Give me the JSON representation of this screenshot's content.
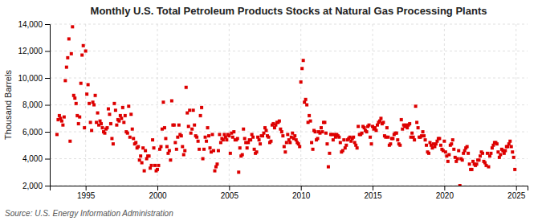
{
  "chart_data": {
    "type": "scatter",
    "title": "Monthly U.S. Total Petroleum Products Stocks at Natural Gas Processing Plants",
    "y_label": "Thousand Barrels",
    "annotations": [
      "Source: U.S. Energy Information Administration"
    ],
    "color": "#dd0000",
    "marker": "square",
    "grid": true,
    "xlim": [
      1992.5,
      2025.8
    ],
    "xticks": [
      1995,
      2000,
      2005,
      2010,
      2015,
      2020,
      2025
    ],
    "ylim": [
      2000,
      14000
    ],
    "yticks": [
      {
        "value": 2000,
        "label": "2,000"
      },
      {
        "value": 4000,
        "label": "4,000"
      },
      {
        "value": 6000,
        "label": "6,000"
      },
      {
        "value": 8000,
        "label": "8,000"
      },
      {
        "value": 10000,
        "label": "10,000"
      },
      {
        "value": 12000,
        "label": "12,000"
      },
      {
        "value": 14000,
        "label": "14,000"
      }
    ],
    "x": [
      1993,
      1993.0833333333333,
      1993.1666666666667,
      1993.25,
      1993.3333333333333,
      1993.4166666666667,
      1993.5,
      1993.5833333333333,
      1993.6666666666667,
      1993.75,
      1993.8333333333333,
      1993.9166666666667,
      1994,
      1994.0833333333333,
      1994.1666666666667,
      1994.25,
      1994.3333333333333,
      1994.4166666666667,
      1994.5,
      1994.5833333333333,
      1994.6666666666667,
      1994.75,
      1994.8333333333333,
      1994.9166666666667,
      1995,
      1995.0833333333333,
      1995.1666666666667,
      1995.25,
      1995.3333333333333,
      1995.4166666666667,
      1995.5,
      1995.5833333333333,
      1995.6666666666667,
      1995.75,
      1995.8333333333333,
      1995.9166666666667,
      1996,
      1996.0833333333333,
      1996.1666666666667,
      1996.25,
      1996.3333333333333,
      1996.4166666666667,
      1996.5,
      1996.5833333333333,
      1996.6666666666667,
      1996.75,
      1996.8333333333333,
      1996.9166666666667,
      1997,
      1997.0833333333333,
      1997.1666666666667,
      1997.25,
      1997.3333333333333,
      1997.4166666666667,
      1997.5,
      1997.5833333333333,
      1997.6666666666667,
      1997.75,
      1997.8333333333333,
      1997.9166666666667,
      1998,
      1998.0833333333333,
      1998.1666666666667,
      1998.25,
      1998.3333333333333,
      1998.4166666666667,
      1998.5,
      1998.5833333333333,
      1998.6666666666667,
      1998.75,
      1998.8333333333333,
      1998.9166666666667,
      1999,
      1999.0833333333333,
      1999.1666666666667,
      1999.25,
      1999.3333333333333,
      1999.4166666666667,
      1999.5,
      1999.5833333333333,
      1999.6666666666667,
      1999.75,
      1999.8333333333333,
      1999.9166666666667,
      2000,
      2000.0833333333333,
      2000.1666666666667,
      2000.25,
      2000.3333333333333,
      2000.4166666666667,
      2000.5,
      2000.5833333333333,
      2000.6666666666667,
      2000.75,
      2000.8333333333333,
      2000.9166666666667,
      2001,
      2001.0833333333333,
      2001.1666666666667,
      2001.25,
      2001.3333333333333,
      2001.4166666666667,
      2001.5,
      2001.5833333333333,
      2001.6666666666667,
      2001.75,
      2001.8333333333333,
      2001.9166666666667,
      2002,
      2002.0833333333333,
      2002.1666666666667,
      2002.25,
      2002.3333333333333,
      2002.4166666666667,
      2002.5,
      2002.5833333333333,
      2002.6666666666667,
      2002.75,
      2002.8333333333333,
      2002.9166666666667,
      2003,
      2003.0833333333333,
      2003.1666666666667,
      2003.25,
      2003.3333333333333,
      2003.4166666666667,
      2003.5,
      2003.5833333333333,
      2003.6666666666667,
      2003.75,
      2003.8333333333333,
      2003.9166666666667,
      2004,
      2004.0833333333333,
      2004.1666666666667,
      2004.25,
      2004.3333333333333,
      2004.4166666666667,
      2004.5,
      2004.5833333333333,
      2004.6666666666667,
      2004.75,
      2004.8333333333333,
      2004.9166666666667,
      2005,
      2005.0833333333333,
      2005.1666666666667,
      2005.25,
      2005.3333333333333,
      2005.4166666666667,
      2005.5,
      2005.5833333333333,
      2005.6666666666667,
      2005.75,
      2005.8333333333333,
      2005.9166666666667,
      2006,
      2006.0833333333333,
      2006.1666666666667,
      2006.25,
      2006.3333333333333,
      2006.4166666666667,
      2006.5,
      2006.5833333333333,
      2006.6666666666667,
      2006.75,
      2006.8333333333333,
      2006.9166666666667,
      2007,
      2007.0833333333333,
      2007.1666666666667,
      2007.25,
      2007.3333333333333,
      2007.4166666666667,
      2007.5,
      2007.5833333333333,
      2007.6666666666667,
      2007.75,
      2007.8333333333333,
      2007.9166666666667,
      2008,
      2008.0833333333333,
      2008.1666666666667,
      2008.25,
      2008.3333333333333,
      2008.4166666666667,
      2008.5,
      2008.5833333333333,
      2008.6666666666667,
      2008.75,
      2008.8333333333333,
      2008.9166666666667,
      2009,
      2009.0833333333333,
      2009.1666666666667,
      2009.25,
      2009.3333333333333,
      2009.4166666666667,
      2009.5,
      2009.5833333333333,
      2009.6666666666667,
      2009.75,
      2009.8333333333333,
      2009.9166666666667,
      2010,
      2010.0833333333333,
      2010.1666666666667,
      2010.25,
      2010.3333333333333,
      2010.4166666666667,
      2010.5,
      2010.5833333333333,
      2010.6666666666667,
      2010.75,
      2010.8333333333333,
      2010.9166666666667,
      2011,
      2011.0833333333333,
      2011.1666666666667,
      2011.25,
      2011.3333333333333,
      2011.4166666666667,
      2011.5,
      2011.5833333333333,
      2011.6666666666667,
      2011.75,
      2011.8333333333333,
      2011.9166666666667,
      2012,
      2012.0833333333333,
      2012.1666666666667,
      2012.25,
      2012.3333333333333,
      2012.4166666666667,
      2012.5,
      2012.5833333333333,
      2012.6666666666667,
      2012.75,
      2012.8333333333333,
      2012.9166666666667,
      2013,
      2013.0833333333333,
      2013.1666666666667,
      2013.25,
      2013.3333333333333,
      2013.4166666666667,
      2013.5,
      2013.5833333333333,
      2013.6666666666667,
      2013.75,
      2013.8333333333333,
      2013.9166666666667,
      2014,
      2014.0833333333333,
      2014.1666666666667,
      2014.25,
      2014.3333333333333,
      2014.4166666666667,
      2014.5,
      2014.5833333333333,
      2014.6666666666667,
      2014.75,
      2014.8333333333333,
      2014.9166666666667,
      2015,
      2015.0833333333333,
      2015.1666666666667,
      2015.25,
      2015.3333333333333,
      2015.4166666666667,
      2015.5,
      2015.5833333333333,
      2015.6666666666667,
      2015.75,
      2015.8333333333333,
      2015.9166666666667,
      2016,
      2016.0833333333333,
      2016.1666666666667,
      2016.25,
      2016.3333333333333,
      2016.4166666666667,
      2016.5,
      2016.5833333333333,
      2016.6666666666667,
      2016.75,
      2016.8333333333333,
      2016.9166666666667,
      2017,
      2017.0833333333333,
      2017.1666666666667,
      2017.25,
      2017.3333333333333,
      2017.4166666666667,
      2017.5,
      2017.5833333333333,
      2017.6666666666667,
      2017.75,
      2017.8333333333333,
      2017.9166666666667,
      2018,
      2018.0833333333333,
      2018.1666666666667,
      2018.25,
      2018.3333333333333,
      2018.4166666666667,
      2018.5,
      2018.5833333333333,
      2018.6666666666667,
      2018.75,
      2018.8333333333333,
      2018.9166666666667,
      2019,
      2019.0833333333333,
      2019.1666666666667,
      2019.25,
      2019.3333333333333,
      2019.4166666666667,
      2019.5,
      2019.5833333333333,
      2019.6666666666667,
      2019.75,
      2019.8333333333333,
      2019.9166666666667,
      2020,
      2020.0833333333333,
      2020.1666666666667,
      2020.25,
      2020.3333333333333,
      2020.4166666666667,
      2020.5,
      2020.5833333333333,
      2020.6666666666667,
      2020.75,
      2020.8333333333333,
      2020.9166666666667,
      2021,
      2021.0833333333333,
      2021.1666666666667,
      2021.25,
      2021.3333333333333,
      2021.4166666666667,
      2021.5,
      2021.5833333333333,
      2021.6666666666667,
      2021.75,
      2021.8333333333333,
      2021.9166666666667,
      2022,
      2022.0833333333333,
      2022.1666666666667,
      2022.25,
      2022.3333333333333,
      2022.4166666666667,
      2022.5,
      2022.5833333333333,
      2022.6666666666667,
      2022.75,
      2022.8333333333333,
      2022.9166666666667,
      2023,
      2023.0833333333333,
      2023.1666666666667,
      2023.25,
      2023.3333333333333,
      2023.4166666666667,
      2023.5,
      2023.5833333333333,
      2023.6666666666667,
      2023.75,
      2023.8333333333333,
      2023.9166666666667,
      2024,
      2024.0833333333333,
      2024.1666666666667,
      2024.25,
      2024.3333333333333,
      2024.4166666666667,
      2024.5,
      2024.5833333333333,
      2024.6666666666667,
      2024.75,
      2024.8333333333333,
      2024.9166666666667
    ],
    "values": [
      5800,
      6900,
      7200,
      7000,
      6800,
      6500,
      7100,
      9800,
      10800,
      11500,
      12900,
      5300,
      11800,
      13800,
      8700,
      8500,
      8100,
      7200,
      6600,
      7100,
      9600,
      11700,
      12400,
      6300,
      12000,
      8800,
      9500,
      8100,
      6700,
      6100,
      8200,
      8000,
      8700,
      6700,
      7400,
      6500,
      6800,
      6600,
      6300,
      6000,
      5900,
      6200,
      6300,
      7700,
      7300,
      6600,
      5500,
      5100,
      8100,
      7600,
      6500,
      6900,
      6800,
      7200,
      7000,
      7800,
      6700,
      7200,
      6000,
      5900,
      7900,
      5600,
      7300,
      6200,
      5500,
      5100,
      5200,
      4800,
      4900,
      3900,
      4200,
      3700,
      4800,
      3100,
      4600,
      4000,
      4200,
      4200,
      3300,
      3500,
      5400,
      4800,
      3500,
      3100,
      3200,
      3500,
      4700,
      4900,
      6200,
      8200,
      6300,
      5500,
      4900,
      4400,
      4600,
      3900,
      8300,
      6500,
      6500,
      5200,
      4700,
      5600,
      6500,
      5800,
      5700,
      4900,
      4300,
      4600,
      9300,
      7400,
      6400,
      7600,
      5900,
      6200,
      7600,
      6500,
      5700,
      5600,
      5300,
      4700,
      7200,
      7800,
      4000,
      4700,
      5600,
      5300,
      6300,
      5700,
      4800,
      4500,
      5800,
      4600,
      3100,
      3400,
      3600,
      4600,
      5800,
      5200,
      5500,
      5400,
      5800,
      5600,
      5400,
      5800,
      5700,
      4400,
      5900,
      5600,
      6000,
      5400,
      5400,
      5500,
      3000,
      4800,
      4200,
      4300,
      6200,
      5500,
      5200,
      4800,
      5200,
      5400,
      5400,
      5800,
      5600,
      4700,
      4400,
      4500,
      5600,
      5400,
      5100,
      5700,
      5700,
      5900,
      6300,
      6100,
      5700,
      5600,
      5200,
      5300,
      6500,
      6600,
      6300,
      6500,
      6700,
      6700,
      6800,
      6200,
      6000,
      5700,
      4900,
      4500,
      5200,
      5800,
      5400,
      5200,
      5600,
      5900,
      5500,
      5700,
      5400,
      5200,
      5100,
      4900,
      9700,
      10700,
      11300,
      8200,
      8400,
      8000,
      6700,
      7200,
      6800,
      5200,
      4700,
      6100,
      6000,
      5400,
      5500,
      6000,
      5900,
      6300,
      6000,
      6700,
      6700,
      5900,
      5100,
      3400,
      4400,
      5800,
      5800,
      5400,
      5800,
      5600,
      5800,
      5700,
      5600,
      5200,
      4500,
      4600,
      5400,
      4800,
      5000,
      5400,
      5500,
      5600,
      5300,
      5500,
      5600,
      5200,
      5000,
      4800,
      6400,
      5800,
      5800,
      5900,
      6400,
      6300,
      6100,
      6000,
      6400,
      6500,
      5600,
      5100,
      6400,
      6200,
      6300,
      6100,
      6500,
      6700,
      6800,
      7000,
      6600,
      6700,
      5700,
      5600,
      6300,
      5600,
      5000,
      5100,
      5500,
      5500,
      5800,
      5900,
      5900,
      5400,
      5100,
      5000,
      6900,
      6200,
      6500,
      6400,
      6500,
      6300,
      6500,
      6600,
      5600,
      5900,
      5600,
      5400,
      7900,
      6700,
      6300,
      5600,
      5600,
      5700,
      6000,
      5700,
      5400,
      5000,
      4500,
      4400,
      5200,
      5000,
      4800,
      5100,
      4900,
      5100,
      5300,
      5500,
      5500,
      5000,
      4700,
      4600,
      5300,
      4500,
      4200,
      3800,
      4300,
      5000,
      5100,
      5400,
      4700,
      4100,
      3800,
      4000,
      4600,
      2000,
      4000,
      3900,
      4400,
      4600,
      4800,
      4900,
      4400,
      3600,
      3200,
      3200,
      3800,
      3600,
      3500,
      3600,
      3900,
      3900,
      4200,
      4500,
      4400,
      3800,
      3700,
      3500,
      4400,
      3400,
      4200,
      4400,
      4800,
      5000,
      5200,
      5200,
      5100,
      4500,
      4100,
      4300,
      4700,
      4600,
      4400,
      4600,
      4900,
      4900,
      5100,
      5300,
      4900,
      4500,
      4100,
      3200
    ]
  }
}
